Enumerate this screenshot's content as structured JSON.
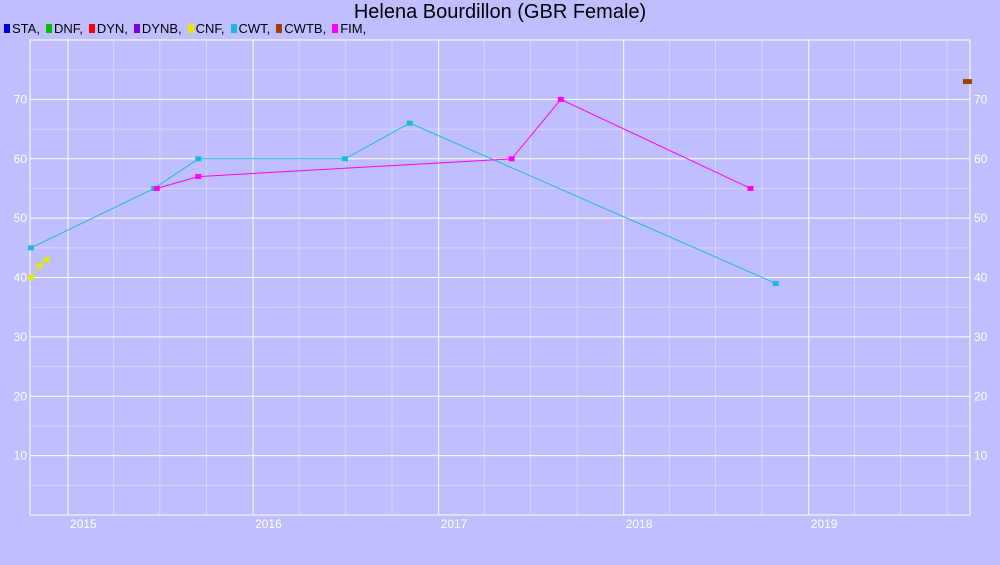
{
  "chart_data": {
    "type": "line",
    "title": "Helena Bourdillon (GBR Female)",
    "xlabel": "",
    "ylabel": "",
    "x_axis": {
      "type": "date",
      "range": [
        "2014-10-18",
        "2019-11-15"
      ],
      "ticks": [
        "2015",
        "2016",
        "2017",
        "2018",
        "2019"
      ]
    },
    "y_axis": {
      "range": [
        0,
        80
      ],
      "ticks": [
        10,
        20,
        30,
        40,
        50,
        60,
        70
      ],
      "left_labels": true,
      "right_labels": true
    },
    "grid": true,
    "legend_position": "top-left",
    "series": [
      {
        "name": "STA",
        "color": "#0000e0",
        "points": []
      },
      {
        "name": "DNF",
        "color": "#00c000",
        "points": []
      },
      {
        "name": "DYN",
        "color": "#ff0000",
        "points": []
      },
      {
        "name": "DYNB",
        "color": "#7a00e0",
        "points": []
      },
      {
        "name": "CNF",
        "color": "#e8e800",
        "points": [
          {
            "x": "2014-10-20",
            "y": 40
          },
          {
            "x": "2014-11-06",
            "y": 42
          },
          {
            "x": "2014-11-20",
            "y": 43
          }
        ]
      },
      {
        "name": "CWT",
        "color": "#20b8d8",
        "points": [
          {
            "x": "2014-10-20",
            "y": 45
          },
          {
            "x": "2015-06-20",
            "y": 55
          },
          {
            "x": "2015-09-15",
            "y": 60
          },
          {
            "x": "2016-06-30",
            "y": 60
          },
          {
            "x": "2016-11-05",
            "y": 66
          },
          {
            "x": "2018-10-28",
            "y": 39
          }
        ]
      },
      {
        "name": "CWTB",
        "color": "#a04000",
        "points": [
          {
            "x": "2019-11-10",
            "y": 73
          }
        ]
      },
      {
        "name": "FIM",
        "color": "#ff00ff",
        "points": [
          {
            "x": "2015-06-25",
            "y": 55
          },
          {
            "x": "2015-09-15",
            "y": 57
          },
          {
            "x": "2017-05-25",
            "y": 60
          },
          {
            "x": "2017-08-30",
            "y": 70
          },
          {
            "x": "2018-09-08",
            "y": 55
          }
        ]
      }
    ]
  }
}
